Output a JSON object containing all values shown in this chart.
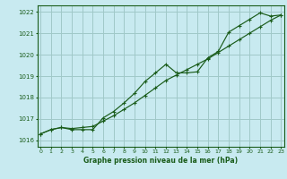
{
  "title": "Graphe pression niveau de la mer (hPa)",
  "bg_color": "#c8eaf0",
  "grid_color": "#a0c8c8",
  "line_color": "#1a5c1a",
  "x_values": [
    0,
    1,
    2,
    3,
    4,
    5,
    6,
    7,
    8,
    9,
    10,
    11,
    12,
    13,
    14,
    15,
    16,
    17,
    18,
    19,
    20,
    21,
    22,
    23
  ],
  "line_smooth": [
    1016.3,
    1016.5,
    1016.6,
    1016.55,
    1016.6,
    1016.65,
    1016.9,
    1017.15,
    1017.45,
    1017.75,
    1018.1,
    1018.45,
    1018.8,
    1019.05,
    1019.3,
    1019.55,
    1019.8,
    1020.1,
    1020.4,
    1020.7,
    1021.0,
    1021.3,
    1021.6,
    1021.85
  ],
  "line_jagged": [
    1016.3,
    1016.5,
    1016.6,
    1016.5,
    1016.5,
    1016.5,
    1017.05,
    1017.35,
    1017.75,
    1018.2,
    1018.75,
    1019.15,
    1019.55,
    1019.15,
    1019.15,
    1019.2,
    1019.85,
    1020.15,
    1021.05,
    1021.35,
    1021.65,
    1021.95,
    1021.8,
    1021.85
  ],
  "ylim": [
    1015.7,
    1022.3
  ],
  "yticks": [
    1016,
    1017,
    1018,
    1019,
    1020,
    1021,
    1022
  ],
  "xlim": [
    -0.3,
    23.3
  ],
  "xticks": [
    0,
    1,
    2,
    3,
    4,
    5,
    6,
    7,
    8,
    9,
    10,
    11,
    12,
    13,
    14,
    15,
    16,
    17,
    18,
    19,
    20,
    21,
    22,
    23
  ]
}
